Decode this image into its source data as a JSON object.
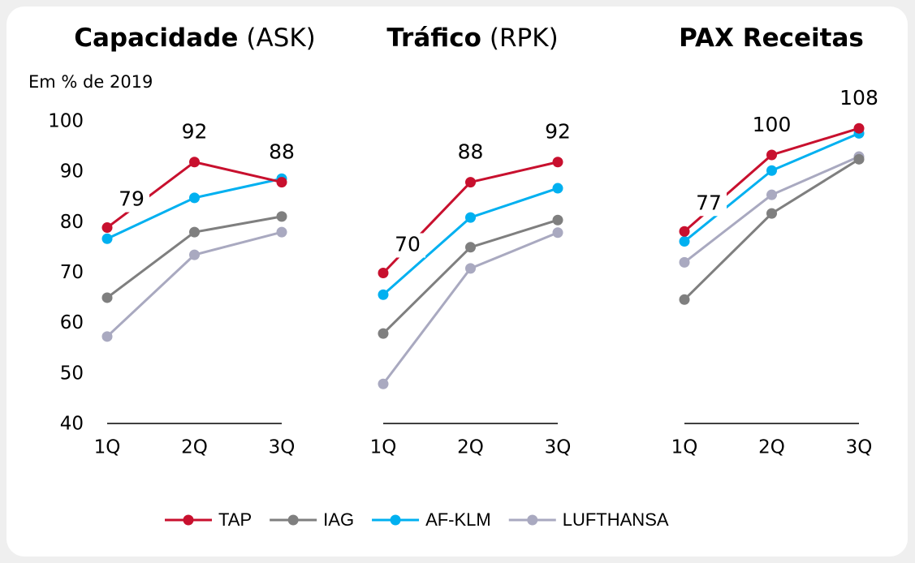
{
  "unit_note": "Em % de 2019",
  "chart_data": [
    {
      "type": "line",
      "title": "Capacidade",
      "title_suffix": "(ASK)",
      "categories": [
        "1Q",
        "2Q",
        "3Q"
      ],
      "ylim": [
        40,
        100
      ],
      "yticks": [
        40,
        50,
        60,
        70,
        80,
        90,
        100
      ],
      "series": [
        {
          "name": "TAP",
          "color": "#c8102e",
          "values": [
            79,
            92,
            88
          ],
          "labeled": true
        },
        {
          "name": "IAG",
          "color": "#7f7f7f",
          "values": [
            65.1,
            78.1,
            81.2
          ]
        },
        {
          "name": "AF-KLM",
          "color": "#00b0f0",
          "values": [
            76.8,
            84.9,
            88.7
          ]
        },
        {
          "name": "LUFTHANSA",
          "color": "#a9a9c0",
          "values": [
            57.4,
            73.6,
            78.1
          ]
        }
      ]
    },
    {
      "type": "line",
      "title": "Tráfico",
      "title_suffix": "(RPK)",
      "categories": [
        "1Q",
        "2Q",
        "3Q"
      ],
      "ylim": [
        40,
        100
      ],
      "series": [
        {
          "name": "TAP",
          "color": "#c8102e",
          "values": [
            70,
            88,
            92
          ],
          "labeled": true
        },
        {
          "name": "IAG",
          "color": "#7f7f7f",
          "values": [
            58,
            75.1,
            80.5
          ]
        },
        {
          "name": "AF-KLM",
          "color": "#00b0f0",
          "values": [
            65.7,
            81,
            86.8
          ]
        },
        {
          "name": "LUFTHANSA",
          "color": "#a9a9c0",
          "values": [
            48,
            70.9,
            78
          ]
        }
      ]
    },
    {
      "type": "line",
      "title": "PAX Receitas",
      "categories": [
        "1Q",
        "2Q",
        "3Q"
      ],
      "ylim": [
        19,
        110
      ],
      "series": [
        {
          "name": "TAP",
          "color": "#c8102e",
          "values": [
            77,
            100,
            108
          ],
          "labeled": true
        },
        {
          "name": "IAG",
          "color": "#7f7f7f",
          "values": [
            56.5,
            82.4,
            98.7
          ]
        },
        {
          "name": "AF-KLM",
          "color": "#00b0f0",
          "values": [
            74,
            95.3,
            106.5
          ]
        },
        {
          "name": "LUFTHANSA",
          "color": "#a9a9c0",
          "values": [
            67.7,
            88,
            99.5
          ]
        }
      ]
    }
  ]
}
